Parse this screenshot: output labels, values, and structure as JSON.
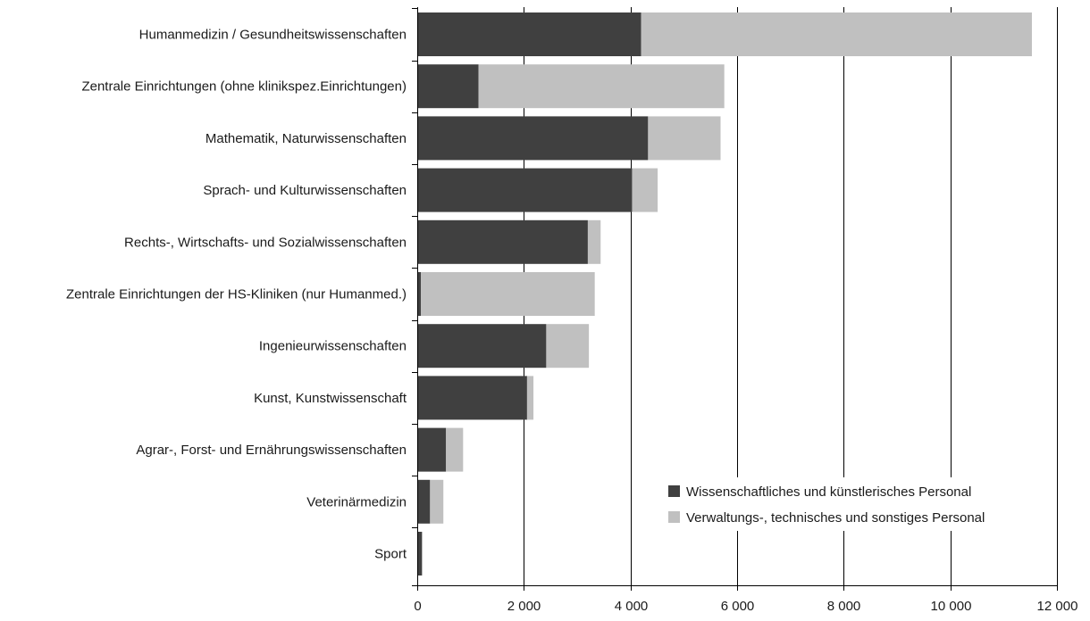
{
  "chart_data": {
    "type": "bar",
    "orientation": "horizontal",
    "stacked": true,
    "categories": [
      "Humanmedizin / Gesundheitswissenschaften",
      "Zentrale Einrichtungen (ohne klinikspez.Einrichtungen)",
      "Mathematik, Naturwissenschaften",
      "Sprach- und Kulturwissenschaften",
      "Rechts-, Wirtschafts- und Sozialwissenschaften",
      "Zentrale Einrichtungen der HS-Kliniken (nur Humanmed.)",
      "Ingenieurwissenschaften",
      "Kunst, Kunstwissenschaft",
      "Agrar-, Forst- und Ernährungswissenschaften",
      "Veterinärmedizin",
      "Sport"
    ],
    "series": [
      {
        "name": "Wissenschaftliches und künstlerisches Personal",
        "color": "#404040",
        "values": [
          4200,
          1150,
          4330,
          4030,
          3200,
          70,
          2420,
          2060,
          540,
          240,
          90
        ]
      },
      {
        "name": "Verwaltungs-, technisches und sonstiges Personal",
        "color": "#c0c0c0",
        "values": [
          7330,
          4610,
          1360,
          480,
          240,
          3260,
          800,
          120,
          320,
          250,
          0
        ]
      }
    ],
    "xlim": [
      0,
      12000
    ],
    "xticks": [
      0,
      2000,
      4000,
      6000,
      8000,
      10000,
      12000
    ],
    "xtick_labels": [
      "0",
      "2 000",
      "4 000",
      "6 000",
      "8 000",
      "10 000",
      "12 000"
    ],
    "grid": "vertical",
    "legend_position": "bottom-right",
    "title": "",
    "xlabel": "",
    "ylabel": ""
  }
}
